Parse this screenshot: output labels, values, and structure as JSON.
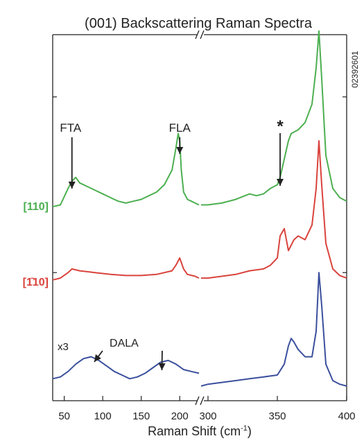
{
  "chart_data": {
    "type": "line",
    "title": "(001) Backscattering Raman Spectra",
    "xlabel": "Raman Shift (cm",
    "xlabel_sup": "-1",
    "xlabel_close": ")",
    "ylabel": "",
    "side_code": "02392601",
    "axis_break": true,
    "x_segments": [
      {
        "xlim": [
          35,
          225
        ],
        "ticks": [
          50,
          100,
          150,
          200
        ]
      },
      {
        "xlim": [
          295,
          400
        ],
        "ticks": [
          300,
          350,
          400
        ]
      }
    ],
    "ylim": [
      0,
      100
    ],
    "yticks": [
      35,
      83
    ],
    "grid": false,
    "series": [
      {
        "name": "[110]",
        "color": "#4caf50",
        "offset": 53,
        "x": [
          35,
          45,
          55,
          60,
          65,
          70,
          80,
          90,
          100,
          110,
          120,
          130,
          140,
          150,
          160,
          170,
          180,
          190,
          195,
          198,
          200,
          202,
          205,
          210,
          215,
          220,
          225,
          295,
          300,
          310,
          320,
          330,
          335,
          340,
          345,
          350,
          352,
          355,
          358,
          360,
          365,
          370,
          372,
          375,
          378,
          380,
          382,
          385,
          390,
          395,
          400
        ],
        "y": [
          0,
          0.5,
          5,
          7,
          8,
          6.5,
          5.5,
          4.5,
          3.5,
          2.5,
          1.5,
          1,
          1.5,
          2,
          3,
          4,
          6,
          10,
          16,
          20,
          18,
          10,
          4,
          2,
          1.5,
          1,
          0.5,
          0.5,
          0.5,
          1,
          2,
          3.5,
          3,
          3.5,
          5,
          6,
          8,
          13,
          18,
          20,
          21,
          23,
          25,
          28,
          38,
          48,
          35,
          14,
          5,
          2.5,
          1.5
        ]
      },
      {
        "name": "[1̄10]",
        "color": "#d9433c",
        "offset": 33,
        "x": [
          35,
          45,
          55,
          60,
          70,
          90,
          110,
          130,
          150,
          170,
          190,
          195,
          200,
          205,
          210,
          220,
          225,
          295,
          300,
          310,
          320,
          330,
          340,
          345,
          350,
          352,
          355,
          358,
          362,
          365,
          370,
          375,
          378,
          380,
          382,
          385,
          390,
          395,
          400
        ],
        "y": [
          0,
          0.5,
          2,
          3,
          2.5,
          2,
          1.5,
          1.2,
          1.2,
          1.5,
          2.5,
          4,
          6,
          3,
          1.5,
          1,
          0.5,
          0.5,
          0.5,
          1,
          1.5,
          2.5,
          3,
          4,
          6,
          12,
          14,
          8,
          11,
          12,
          11,
          15,
          25,
          38,
          26,
          10,
          3,
          1.2,
          0.5
        ]
      },
      {
        "name": "x3",
        "color": "#3a4f9c",
        "offset": 4,
        "x": [
          35,
          45,
          55,
          65,
          75,
          85,
          95,
          105,
          115,
          125,
          135,
          145,
          155,
          165,
          175,
          185,
          195,
          205,
          215,
          225,
          295,
          300,
          310,
          320,
          330,
          340,
          350,
          355,
          358,
          360,
          362,
          365,
          370,
          375,
          378,
          380,
          382,
          385,
          390,
          395,
          400
        ],
        "y": [
          2,
          2.5,
          4,
          6,
          7.5,
          8,
          7,
          5.5,
          4,
          3,
          2,
          2.5,
          3.5,
          5,
          6.5,
          7,
          6,
          4.5,
          4,
          3.5,
          0,
          0.5,
          1,
          1.5,
          2,
          2.5,
          3,
          6,
          11,
          13,
          12,
          10,
          8,
          8,
          15,
          31,
          22,
          6,
          1.5,
          0.5,
          0
        ]
      }
    ],
    "series_labels": [
      "[110]",
      "[1̄10]",
      "x3"
    ],
    "annotations": [
      {
        "text": "FTA",
        "x": 60,
        "series": 0
      },
      {
        "text": "FLA",
        "x": 200,
        "series": 0
      },
      {
        "text": "*",
        "x": 352,
        "series": 0
      },
      {
        "text": "DALA",
        "x": 125,
        "series": 2,
        "targets": [
          80,
          175
        ]
      }
    ]
  }
}
